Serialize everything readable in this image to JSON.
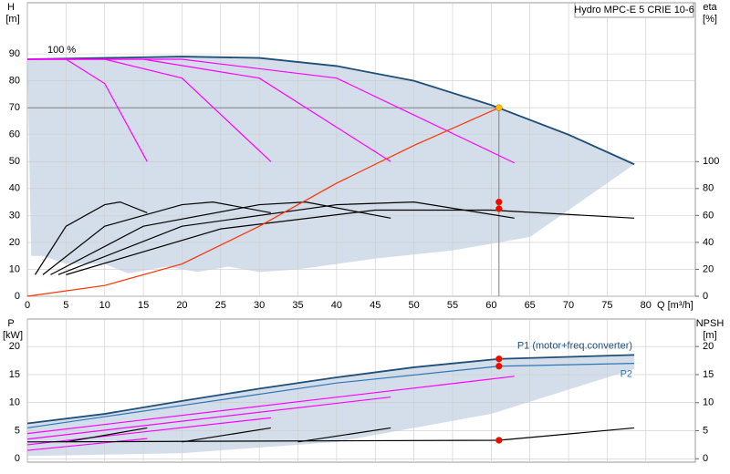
{
  "chart_data": [
    {
      "type": "line",
      "title": "Hydro MPC-E 5 CRIE 10-6",
      "annotation": "100 %",
      "ylabel": "H",
      "yunit": "[m]",
      "y2label": "eta",
      "y2unit": "[%]",
      "xlabel": "Q [m³/h]",
      "xlim": [
        0,
        86.4
      ],
      "xticks": [
        0,
        5,
        10,
        15,
        20,
        25,
        30,
        35,
        40,
        45,
        50,
        55,
        60,
        65,
        70,
        75,
        80
      ],
      "ylim": [
        0,
        109
      ],
      "yticks": [
        0,
        10,
        20,
        30,
        40,
        50,
        60,
        70,
        80,
        90
      ],
      "y2lim": [
        0,
        218
      ],
      "y2ticks": [
        0,
        20,
        40,
        60,
        80,
        100
      ],
      "grid": true,
      "envelope": {
        "color": "#c8d6e5",
        "x": [
          0.5,
          2,
          5,
          10,
          13,
          18,
          22,
          26,
          30,
          35,
          45,
          55,
          65,
          78.5
        ],
        "values": [
          15,
          15,
          12,
          12,
          8.5,
          11,
          9,
          11,
          9,
          10,
          14,
          17,
          22,
          49
        ]
      },
      "duty_point": {
        "x": 61,
        "y": 70,
        "color": "#808080"
      },
      "series": [
        {
          "color": "#1f4e79",
          "x": [
            0,
            10,
            20,
            30,
            40,
            50,
            60,
            70,
            78.5
          ],
          "values": [
            88,
            88.5,
            89,
            88.5,
            85.5,
            80,
            71,
            60,
            49
          ]
        },
        {
          "color": "#ff00ff",
          "x": [
            0,
            5,
            10,
            15.5
          ],
          "values": [
            88,
            88,
            79,
            50
          ]
        },
        {
          "color": "#ff00ff",
          "x": [
            0,
            10,
            20,
            31.5
          ],
          "values": [
            88,
            88,
            81,
            50
          ]
        },
        {
          "color": "#ff00ff",
          "x": [
            0,
            15,
            30,
            47
          ],
          "values": [
            88,
            88,
            81,
            50
          ]
        },
        {
          "color": "#ff00ff",
          "x": [
            0,
            20,
            40,
            63
          ],
          "values": [
            88,
            88,
            81,
            49.5
          ]
        },
        {
          "color": "#000000",
          "axis": "y2",
          "x": [
            1,
            5,
            10,
            12,
            15.5
          ],
          "values": [
            16,
            52,
            68,
            70,
            62
          ]
        },
        {
          "color": "#000000",
          "axis": "y2",
          "x": [
            2,
            10,
            20,
            24,
            31.5
          ],
          "values": [
            16,
            52,
            68,
            70,
            62
          ]
        },
        {
          "color": "#000000",
          "axis": "y2",
          "x": [
            3,
            15,
            30,
            36,
            47
          ],
          "values": [
            16,
            52,
            68,
            70,
            58
          ]
        },
        {
          "color": "#000000",
          "axis": "y2",
          "x": [
            4,
            20,
            40,
            50,
            63
          ],
          "values": [
            16,
            52,
            68,
            70,
            58
          ]
        },
        {
          "color": "#000000",
          "axis": "y2",
          "x": [
            5,
            25,
            45,
            60,
            78.5
          ],
          "values": [
            16,
            50,
            64,
            64,
            58
          ]
        },
        {
          "color": "#ff3300",
          "x": [
            0,
            10,
            20,
            30,
            40,
            50,
            61
          ],
          "values": [
            0,
            4,
            12,
            26,
            42,
            56,
            70
          ]
        }
      ],
      "points": [
        {
          "x": 61,
          "y": 70,
          "color": "#ffc000"
        },
        {
          "x": 61,
          "y": 70,
          "color": "#ff0000",
          "axis": "y2"
        },
        {
          "x": 61,
          "y": 65,
          "color": "#ff0000",
          "axis": "y2"
        }
      ]
    },
    {
      "type": "line",
      "ylabel": "P",
      "yunit": "[kW]",
      "y2label": "NPSH",
      "y2unit": "[m]",
      "xlim": [
        0,
        86.4
      ],
      "xticks": [
        0,
        5,
        10,
        15,
        20,
        25,
        30,
        35,
        40,
        45,
        50,
        55,
        60,
        65,
        70,
        75,
        80
      ],
      "ylim": [
        -0.6,
        24.9
      ],
      "yticks": [
        0,
        5,
        10,
        15,
        20
      ],
      "y2lim": [
        -0.6,
        24.9
      ],
      "y2ticks": [
        0,
        5,
        10,
        15,
        20
      ],
      "grid": true,
      "envelope": {
        "color": "#c8d6e5",
        "x": [
          0,
          20,
          40,
          60,
          78.5
        ],
        "values": [
          0.5,
          1,
          3,
          8,
          16
        ]
      },
      "series": [
        {
          "name": "P1 (motor+freq.converter)",
          "color": "#1f4e79",
          "x": [
            0,
            10,
            20,
            30,
            40,
            50,
            61,
            78.5
          ],
          "values": [
            6.3,
            8,
            10.3,
            12.5,
            14.5,
            16.3,
            17.8,
            18.5
          ]
        },
        {
          "name": "P2",
          "color": "#2e75b6",
          "x": [
            0,
            20,
            40,
            61,
            78.5
          ],
          "values": [
            5.5,
            9.5,
            13.5,
            16.5,
            17
          ]
        },
        {
          "color": "#ff00ff",
          "x": [
            0,
            15.5
          ],
          "values": [
            1.5,
            3.6
          ]
        },
        {
          "color": "#ff00ff",
          "x": [
            0,
            31.5
          ],
          "values": [
            2.5,
            7.3
          ]
        },
        {
          "color": "#ff00ff",
          "x": [
            0,
            47
          ],
          "values": [
            3.5,
            11
          ]
        },
        {
          "color": "#ff00ff",
          "x": [
            0,
            63
          ],
          "values": [
            4.5,
            14.7
          ]
        },
        {
          "color": "#000000",
          "axis": "y2",
          "x": [
            0,
            61,
            78.5
          ],
          "values": [
            3,
            3.3,
            5.5
          ]
        },
        {
          "color": "#000000",
          "axis": "y2",
          "x": [
            5,
            15.5
          ],
          "values": [
            3,
            5.5
          ]
        },
        {
          "color": "#000000",
          "axis": "y2",
          "x": [
            20,
            31.5
          ],
          "values": [
            3,
            5.5
          ]
        },
        {
          "color": "#000000",
          "axis": "y2",
          "x": [
            35,
            47
          ],
          "values": [
            3,
            5.5
          ]
        }
      ],
      "points": [
        {
          "x": 61,
          "y": 17.8,
          "color": "#ff0000"
        },
        {
          "x": 61,
          "y": 16.5,
          "color": "#ff0000"
        },
        {
          "x": 61,
          "y": 3.3,
          "color": "#ff0000",
          "axis": "y2"
        }
      ]
    }
  ]
}
